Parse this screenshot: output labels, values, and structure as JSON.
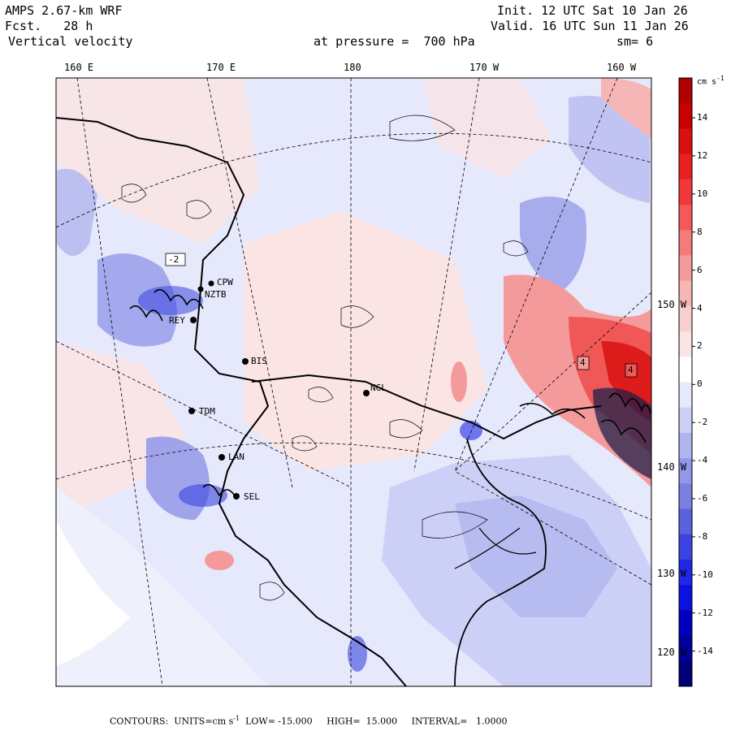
{
  "header": {
    "model": "AMPS 2.67-km WRF",
    "forecast": "Fcst.   28 h",
    "field": "Vertical velocity",
    "pressure": "at pressure =  700 hPa",
    "init": "Init. 12 UTC Sat 10 Jan 26",
    "valid": "Valid. 16 UTC Sun 11 Jan 26",
    "smoothing": "sm= 6"
  },
  "map": {
    "longitude_labels": [
      "160 E",
      "170 E",
      "180",
      "170 W",
      "160 W"
    ],
    "latitude_labels": [
      "150 W",
      "140 W",
      "130 W",
      "120 W"
    ],
    "stations": [
      "CPW",
      "NZTB",
      "REY",
      "BIS",
      "NGL",
      "TDM",
      "LAN",
      "SEL"
    ],
    "contour_labels": [
      "-2",
      "4",
      "4"
    ]
  },
  "colorbar": {
    "units": "cm s",
    "units_exp": "-1",
    "ticks": [
      "14",
      "12",
      "10",
      "8",
      "6",
      "4",
      "2",
      "0",
      "-2",
      "-4",
      "-6",
      "-8",
      "-10",
      "-12",
      "-14"
    ],
    "colors": [
      "#b00000",
      "#c80000",
      "#d81010",
      "#e82020",
      "#f03838",
      "#f45858",
      "#f57a7a",
      "#f59a9a",
      "#f6b6b6",
      "#f8cece",
      "#fbe4e4",
      "#ffffff",
      "#e6e8fb",
      "#cdd0f6",
      "#b0b5ef",
      "#9298e8",
      "#7a80e0",
      "#5a62dc",
      "#3b44e0",
      "#2028e6",
      "#0a12e0",
      "#0000c0",
      "#00009a",
      "#00007a"
    ]
  },
  "footer": {
    "contours": "CONTOURS:  UNITS=cm s",
    "units_exp": "-1",
    "low": "LOW= -15.000",
    "high": "HIGH=  15.000",
    "interval": "INTERVAL=   1.0000"
  }
}
